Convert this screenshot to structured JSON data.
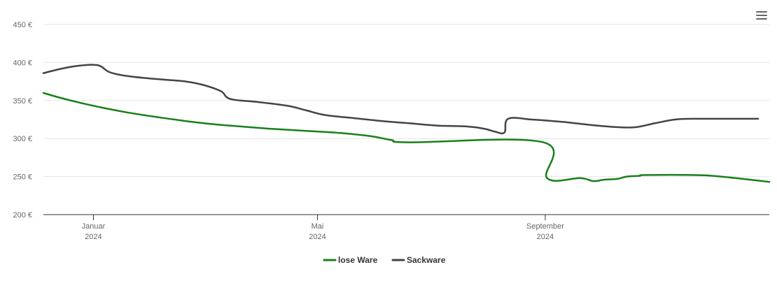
{
  "chart_data": {
    "type": "line",
    "currency_suffix": " €",
    "y_ticks": [
      200,
      250,
      300,
      350,
      400,
      450
    ],
    "y_tick_labels": [
      "200 €",
      "250 €",
      "300 €",
      "350 €",
      "400 €",
      "450 €"
    ],
    "ylim": [
      200,
      450
    ],
    "xlim": [
      "2023-12-05",
      "2024-12-31"
    ],
    "x_ticks": [
      {
        "date": "2024-01-01",
        "label1": "Januar",
        "label2": "2024"
      },
      {
        "date": "2024-05-01",
        "label1": "Mai",
        "label2": "2024"
      },
      {
        "date": "2024-09-01",
        "label1": "September",
        "label2": "2024"
      }
    ],
    "grid": true,
    "legend_position": "bottom-center",
    "series": [
      {
        "name": "lose Ware",
        "color": "#1a7f1a",
        "points": [
          [
            "2023-12-05",
            360
          ],
          [
            "2023-12-15",
            353
          ],
          [
            "2023-12-25",
            347
          ],
          [
            "2024-01-05",
            341
          ],
          [
            "2024-01-20",
            334
          ],
          [
            "2024-02-05",
            328
          ],
          [
            "2024-02-20",
            323
          ],
          [
            "2024-03-05",
            319
          ],
          [
            "2024-03-20",
            316
          ],
          [
            "2024-04-05",
            313
          ],
          [
            "2024-04-25",
            310
          ],
          [
            "2024-05-15",
            307
          ],
          [
            "2024-05-30",
            303
          ],
          [
            "2024-06-10",
            298
          ],
          [
            "2024-06-20",
            295
          ],
          [
            "2024-08-31",
            295
          ],
          [
            "2024-09-02",
            248
          ],
          [
            "2024-09-20",
            248
          ],
          [
            "2024-09-27",
            244
          ],
          [
            "2024-10-03",
            246
          ],
          [
            "2024-10-10",
            247
          ],
          [
            "2024-10-15",
            250
          ],
          [
            "2024-10-22",
            251
          ],
          [
            "2024-10-25",
            252
          ],
          [
            "2024-11-20",
            252
          ],
          [
            "2024-12-05",
            250
          ],
          [
            "2024-12-31",
            243
          ]
        ]
      },
      {
        "name": "Sackware",
        "color": "#434348",
        "points": [
          [
            "2023-12-05",
            386
          ],
          [
            "2023-12-15",
            392
          ],
          [
            "2023-12-25",
            396
          ],
          [
            "2024-01-01",
            397
          ],
          [
            "2024-01-05",
            395
          ],
          [
            "2024-01-10",
            387
          ],
          [
            "2024-01-20",
            382
          ],
          [
            "2024-02-05",
            378
          ],
          [
            "2024-02-20",
            375
          ],
          [
            "2024-03-01",
            370
          ],
          [
            "2024-03-10",
            362
          ],
          [
            "2024-03-15",
            352
          ],
          [
            "2024-03-30",
            348
          ],
          [
            "2024-04-15",
            343
          ],
          [
            "2024-04-25",
            337
          ],
          [
            "2024-05-05",
            331
          ],
          [
            "2024-05-20",
            327
          ],
          [
            "2024-06-05",
            323
          ],
          [
            "2024-06-20",
            320
          ],
          [
            "2024-07-05",
            317
          ],
          [
            "2024-07-20",
            316
          ],
          [
            "2024-07-30",
            313
          ],
          [
            "2024-08-05",
            309
          ],
          [
            "2024-08-10",
            308
          ],
          [
            "2024-08-12",
            326
          ],
          [
            "2024-08-25",
            325
          ],
          [
            "2024-09-10",
            322
          ],
          [
            "2024-09-25",
            318
          ],
          [
            "2024-10-10",
            315
          ],
          [
            "2024-10-20",
            315
          ],
          [
            "2024-10-30",
            320
          ],
          [
            "2024-11-10",
            325
          ],
          [
            "2024-11-20",
            326
          ],
          [
            "2024-12-20",
            326
          ],
          [
            "2024-12-25",
            326
          ]
        ]
      }
    ]
  },
  "legend": {
    "items": [
      {
        "label": "lose Ware",
        "color": "#1a7f1a"
      },
      {
        "label": "Sackware",
        "color": "#434348"
      }
    ]
  },
  "menu": {
    "icon": "hamburger-menu-icon"
  }
}
